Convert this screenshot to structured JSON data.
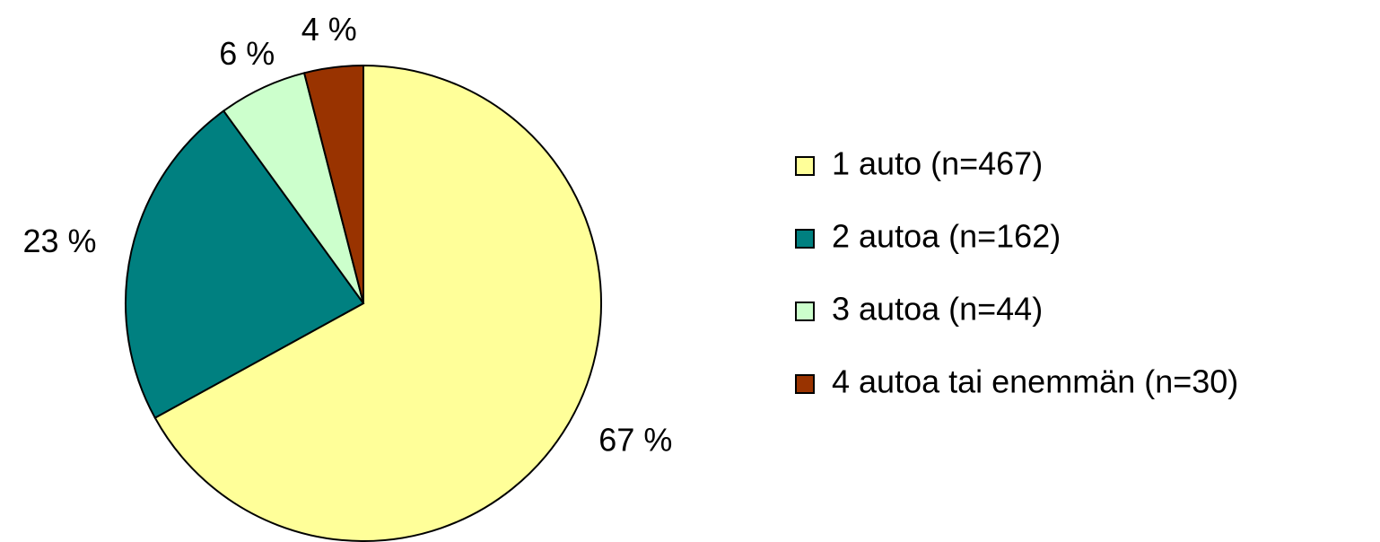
{
  "chart_data": {
    "type": "pie",
    "categories": [
      "1 auto (n=467)",
      "2 autoa (n=162)",
      "3 autoa (n=44)",
      "4 autoa tai enemmän (n=30)"
    ],
    "values": [
      67,
      23,
      6,
      4
    ],
    "value_labels": [
      "67 %",
      "23 %",
      "6 %",
      "4 %"
    ],
    "colors": [
      "#ffff99",
      "#008080",
      "#ccffcc",
      "#993300"
    ],
    "legend": "right"
  }
}
